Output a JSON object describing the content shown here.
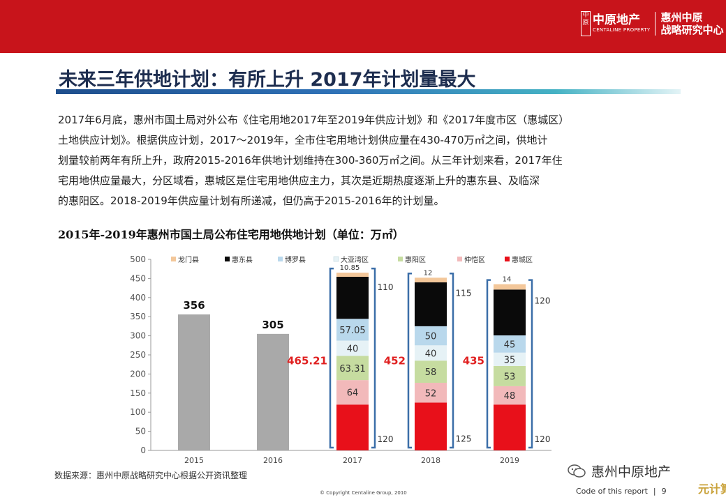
{
  "header": {
    "logo_name": "中原地产",
    "logo_seal": "中原",
    "logo_english": "CENTALINE PROPERTY",
    "center_line1": "惠州中原",
    "center_line2": "战略研究中心",
    "bar_color": "#c8141b"
  },
  "title": "未来三年供地计划：有所上升  2017年计划量最大",
  "body_text": "2017年6月底，惠州市国土局对外公布《住宅用地2017年至2019年供应计划》和《2017年度市区（惠城区）\n土地供应计划》。根据供应计划，2017～2019年，全市住宅用地计划供应量在430-470万㎡之间，供地计\n划量较前两年有所上升，政府2015-2016年供地计划维持在300-360万㎡之间。从三年计划来看，2017年住\n宅用地供应量最大，分区域看，惠城区是住宅用地供应主力，其次是近期热度逐渐上升的惠东县、及临深\n的惠阳区。2018-2019年供应量计划有所递减，但仍高于2015-2016年的计划量。",
  "chart_data": {
    "type": "bar",
    "title": "2015年-2019年惠州市国土局公布住宅用地供地计划（单位：万㎡）",
    "categories": [
      "2015",
      "2016",
      "2017",
      "2018",
      "2019"
    ],
    "ylim": [
      0,
      500
    ],
    "yticks": [
      0,
      50,
      100,
      150,
      200,
      250,
      300,
      350,
      400,
      450,
      500
    ],
    "grid": false,
    "legend_position": "top",
    "totals_bars": [
      {
        "category": "2015",
        "value": 356,
        "label": "356"
      },
      {
        "category": "2016",
        "value": 305,
        "label": "305"
      }
    ],
    "stack_order": [
      "惠城区",
      "仲恺区",
      "惠阳区",
      "大亚湾区",
      "博罗县",
      "惠东县",
      "龙门县"
    ],
    "legend_order": [
      "龙门县",
      "惠东县",
      "博罗县",
      "大亚湾区",
      "惠阳区",
      "仲恺区",
      "惠城区"
    ],
    "series": [
      {
        "name": "惠城区",
        "color": "#e8101a",
        "values": [
          null,
          null,
          120,
          125,
          120
        ],
        "labels": [
          "",
          "",
          "120",
          "125",
          "120"
        ]
      },
      {
        "name": "仲恺区",
        "color": "#f2b9ba",
        "values": [
          null,
          null,
          64,
          52,
          48
        ],
        "labels": [
          "",
          "",
          "64",
          "52",
          "48"
        ]
      },
      {
        "name": "惠阳区",
        "color": "#c6dca0",
        "values": [
          null,
          null,
          63.31,
          58,
          53
        ],
        "labels": [
          "",
          "",
          "63.31",
          "58",
          "53"
        ]
      },
      {
        "name": "大亚湾区",
        "color": "#e6f2f6",
        "values": [
          null,
          null,
          40,
          40,
          35
        ],
        "labels": [
          "",
          "",
          "40",
          "40",
          "35"
        ]
      },
      {
        "name": "博罗县",
        "color": "#b9d8ec",
        "values": [
          null,
          null,
          57.05,
          50,
          45
        ],
        "labels": [
          "",
          "",
          "57.05",
          "50",
          "45"
        ]
      },
      {
        "name": "惠东县",
        "color": "#0a0a0a",
        "values": [
          null,
          null,
          110,
          115,
          120
        ],
        "labels": [
          "",
          "",
          "110",
          "115",
          "120"
        ]
      },
      {
        "name": "龙门县",
        "color": "#f3c79a",
        "values": [
          null,
          null,
          10.85,
          12,
          14
        ],
        "labels": [
          "",
          "",
          "10.85",
          "12",
          "14"
        ]
      }
    ],
    "stack_totals": [
      {
        "category": "2017",
        "label": "465.21"
      },
      {
        "category": "2018",
        "label": "452"
      },
      {
        "category": "2019",
        "label": "435"
      }
    ],
    "total_bar_color": "#a9a9a9",
    "bracket_color": "#3b6ea8",
    "total_label_color": "#e02020"
  },
  "source": "数据来源：惠州中原战略研究中心根据公开资讯整理",
  "copyright": "© Copyright  Centaline Group, 2010",
  "footer": {
    "code_label": "Code of this report",
    "page": "9"
  },
  "wechat_account": "惠州中原地产",
  "corner_mark": "元计算"
}
